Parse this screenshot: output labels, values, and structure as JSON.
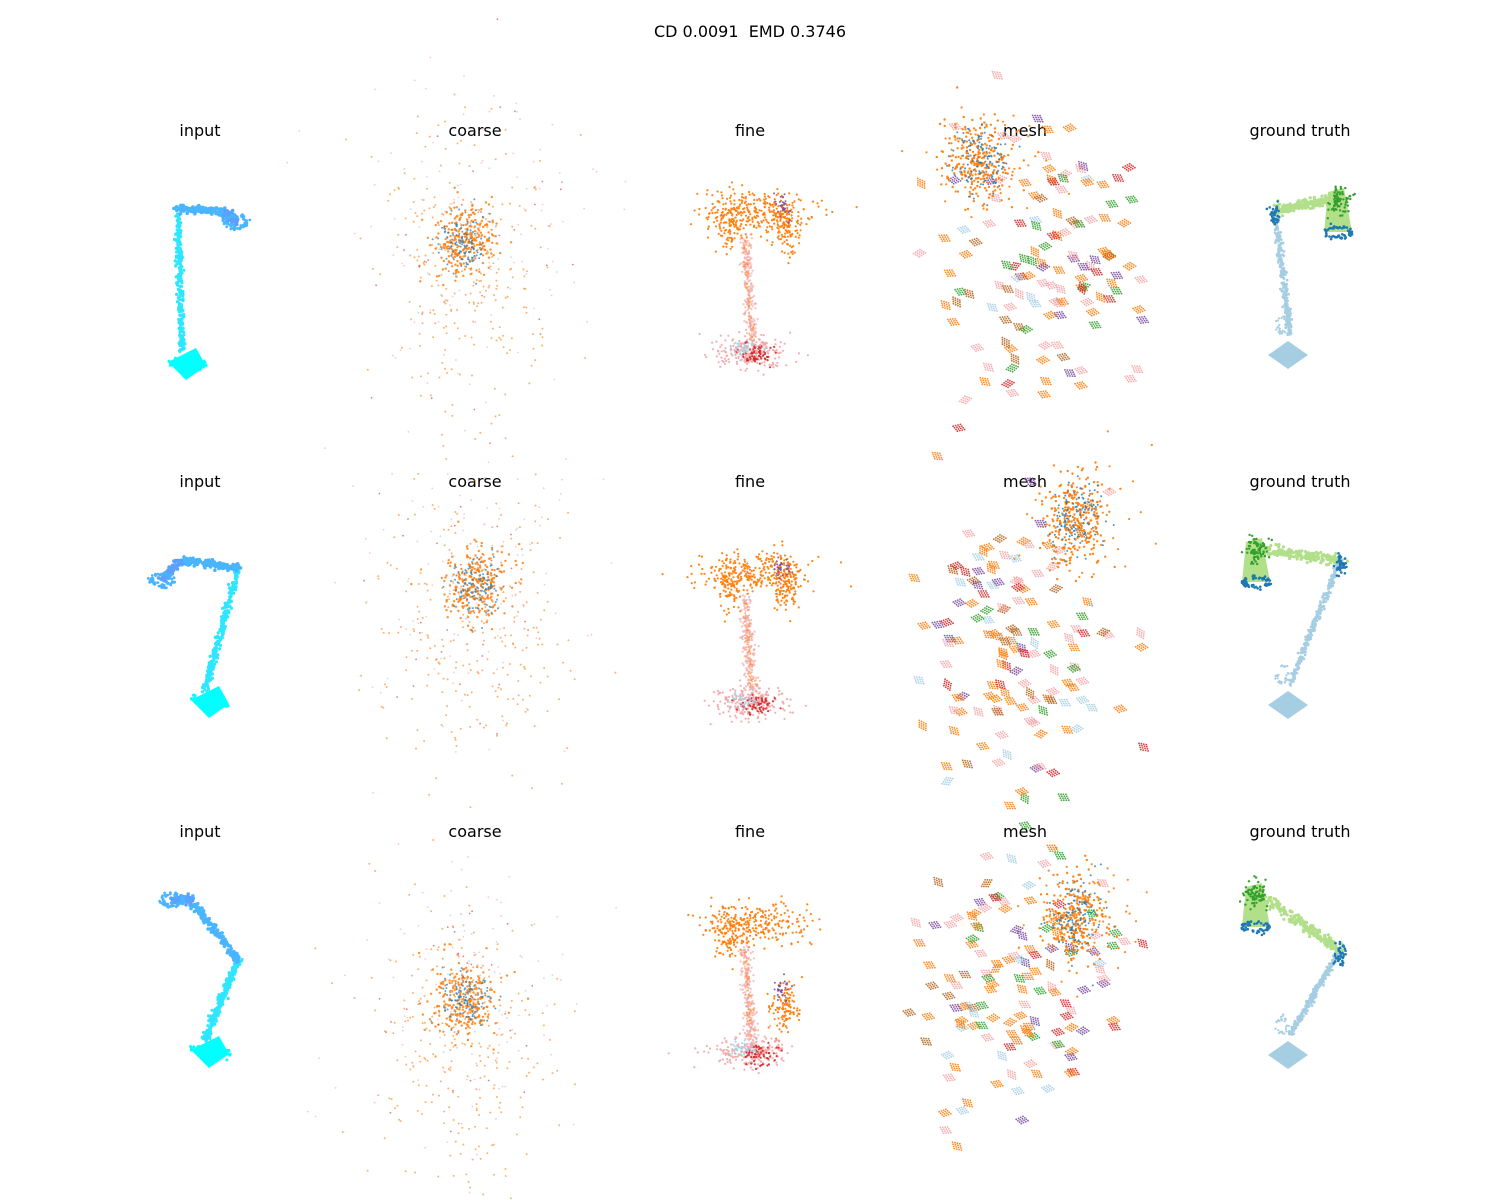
{
  "figure": {
    "title": "CD 0.0091  EMD 0.3746"
  },
  "panel_titles": [
    "input",
    "coarse",
    "fine",
    "mesh",
    "ground truth"
  ],
  "rows": [
    {
      "titles": [
        "input",
        "coarse",
        "fine",
        "mesh",
        "ground truth"
      ],
      "view": "rear"
    },
    {
      "titles": [
        "input",
        "coarse",
        "fine",
        "mesh",
        "ground truth"
      ],
      "view": "side"
    },
    {
      "titles": [
        "input",
        "coarse",
        "fine",
        "mesh",
        "ground truth"
      ],
      "view": "front"
    }
  ],
  "colors": {
    "input": [
      "#00ffff",
      "#2ee6ff",
      "#4ab5ff",
      "#5aa0ff"
    ],
    "pred_orange": "#ff7f0e",
    "pred_blue": "#1f77b4",
    "pred_purple": "#7b4fa0",
    "pred_red": "#d62728",
    "pred_pink": "#f4a6a8",
    "pred_lightblue": "#a6cee3",
    "pred_green": "#33a02c",
    "pred_brown": "#b5651d",
    "pred_yellow": "#ffed6f",
    "gt_stand": "#a6cee3",
    "gt_joint": "#1f78b4",
    "gt_arm": "#b2df8a",
    "gt_head": "#33a02c"
  }
}
